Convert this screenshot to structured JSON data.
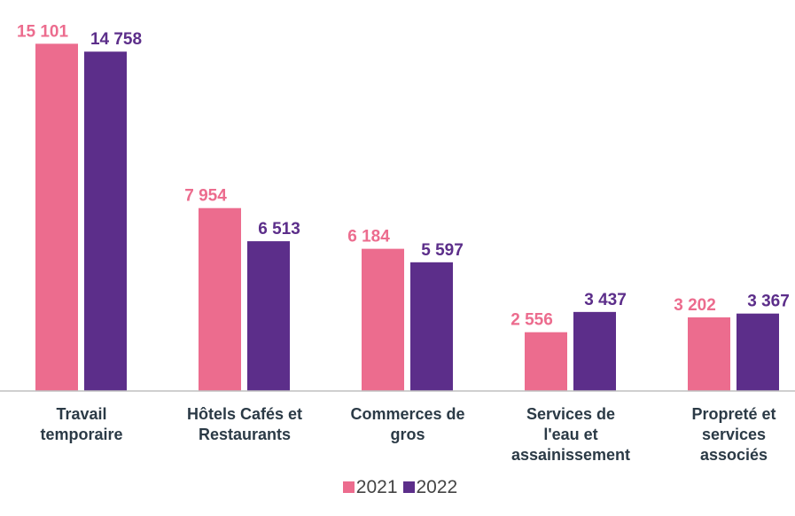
{
  "chart_data": {
    "type": "bar",
    "categories": [
      "Travail\ntemporaire",
      "Hôtels Cafés et\nRestaurants",
      "Commerces de\ngros",
      "Services de\nl'eau et\nassainissement",
      "Propreté et\nservices\nassociés"
    ],
    "series": [
      {
        "name": "2021",
        "color": "#ec6c8e",
        "values": [
          15101,
          7954,
          6184,
          2556,
          3202
        ],
        "value_labels": [
          "15 101",
          "7 954",
          "6 184",
          "2 556",
          "3 202"
        ]
      },
      {
        "name": "2022",
        "color": "#5c2e8a",
        "values": [
          14758,
          6513,
          5597,
          3437,
          3367
        ],
        "value_labels": [
          "14 758",
          "6 513",
          "5 597",
          "3 437",
          "3 367"
        ]
      }
    ],
    "ylim": [
      0,
      15500
    ],
    "legend": "bottom"
  }
}
